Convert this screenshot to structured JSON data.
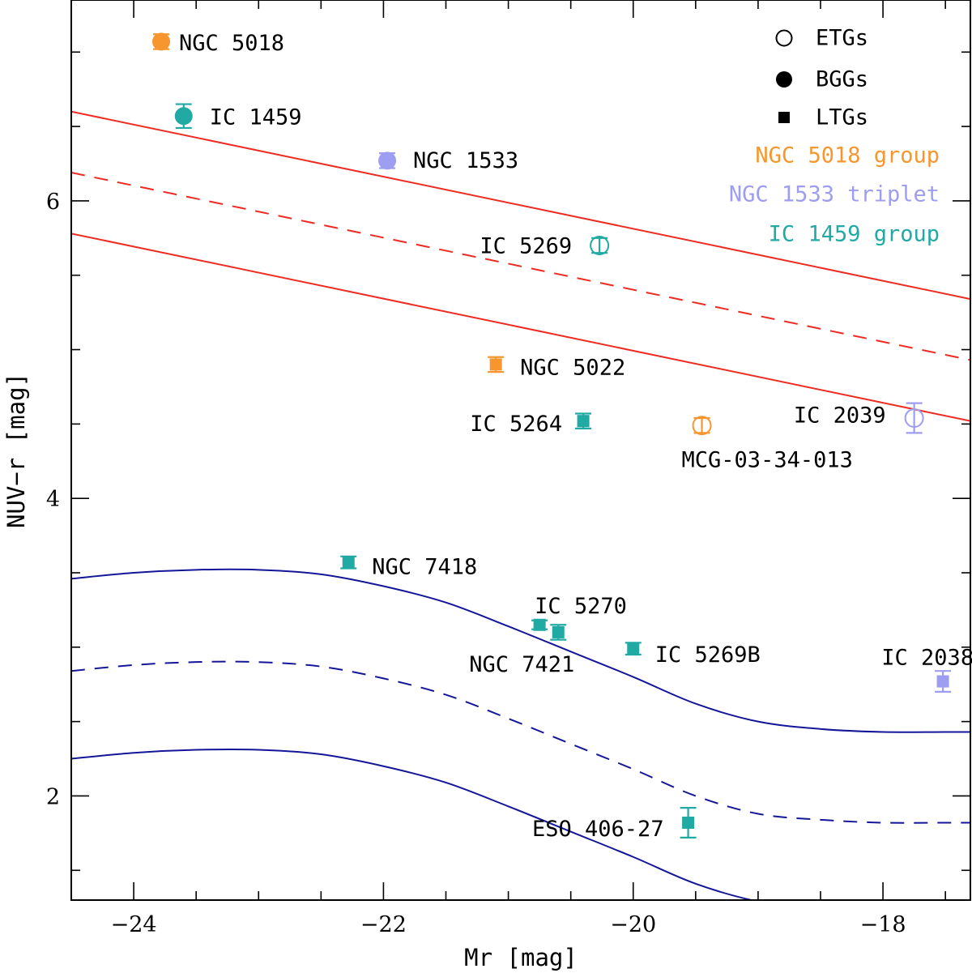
{
  "chart_data": {
    "type": "scatter",
    "xlabel": "Mr [mag]",
    "ylabel": "NUV−r [mag]",
    "xlim": [
      -24.5,
      -17.3
    ],
    "ylim": [
      1.3,
      7.35
    ],
    "x_ticks": [
      -24,
      -22,
      -20,
      -18
    ],
    "x_tick_labels": [
      "−24",
      "−22",
      "−20",
      "−18"
    ],
    "y_ticks": [
      2,
      4,
      6
    ],
    "y_tick_labels": [
      "2",
      "4",
      "6"
    ],
    "colors": {
      "ngc5018": "#f7962f",
      "ngc1533": "#9d9df2",
      "ic1459": "#21aaa4",
      "red_sequence": "#ee2b22",
      "blue_cloud": "#14169a"
    },
    "legend": {
      "position": "top-right",
      "symbols": [
        {
          "marker": "open-circle",
          "label": "ETGs"
        },
        {
          "marker": "filled-circle",
          "label": "BGGs"
        },
        {
          "marker": "filled-square",
          "label": "LTGs"
        }
      ],
      "groups": [
        {
          "label": "NGC 5018 group",
          "color": "ngc5018"
        },
        {
          "label": "NGC 1533 triplet",
          "color": "ngc1533"
        },
        {
          "label": "IC 1459 group",
          "color": "ic1459"
        }
      ]
    },
    "points": [
      {
        "name": "NGC 5018",
        "x": -23.78,
        "y": 7.07,
        "yerr": 0.05,
        "marker": "filled-circle",
        "group": "ngc5018"
      },
      {
        "name": "IC 1459",
        "x": -23.6,
        "y": 6.57,
        "yerr": 0.08,
        "marker": "filled-circle",
        "group": "ic1459"
      },
      {
        "name": "NGC 1533",
        "x": -21.97,
        "y": 6.27,
        "yerr": 0.05,
        "marker": "filled-circle",
        "group": "ngc1533"
      },
      {
        "name": "IC 5269",
        "x": -20.27,
        "y": 5.7,
        "yerr": 0.05,
        "marker": "open-circle",
        "group": "ic1459"
      },
      {
        "name": "NGC 5022",
        "x": -21.1,
        "y": 4.9,
        "yerr": 0.05,
        "marker": "filled-square",
        "group": "ngc5018"
      },
      {
        "name": "IC 5264",
        "x": -20.4,
        "y": 4.52,
        "yerr": 0.05,
        "marker": "filled-square",
        "group": "ic1459"
      },
      {
        "name": "MCG-03-34-013",
        "x": -19.45,
        "y": 4.49,
        "yerr": 0.05,
        "marker": "open-circle",
        "group": "ngc5018"
      },
      {
        "name": "IC 2039",
        "x": -17.75,
        "y": 4.54,
        "yerr": 0.1,
        "marker": "open-circle",
        "group": "ngc1533"
      },
      {
        "name": "NGC 7418",
        "x": -22.28,
        "y": 3.57,
        "yerr": 0.04,
        "marker": "filled-square",
        "group": "ic1459"
      },
      {
        "name": "IC 5270",
        "x": -20.75,
        "y": 3.15,
        "yerr": 0.03,
        "marker": "filled-square",
        "group": "ic1459"
      },
      {
        "name": "NGC 7421",
        "x": -20.6,
        "y": 3.1,
        "yerr": 0.05,
        "marker": "filled-square",
        "group": "ic1459"
      },
      {
        "name": "IC 5269B",
        "x": -20.0,
        "y": 2.99,
        "yerr": 0.04,
        "marker": "filled-square",
        "group": "ic1459"
      },
      {
        "name": "IC 2038",
        "x": -17.52,
        "y": 2.77,
        "yerr": 0.07,
        "marker": "filled-square",
        "group": "ngc1533"
      },
      {
        "name": "ESO 406-27",
        "x": -19.56,
        "y": 1.82,
        "yerr": 0.1,
        "marker": "filled-square",
        "group": "ic1459"
      }
    ],
    "lines": [
      {
        "name": "red-sequence-upper",
        "style": "solid",
        "color": "red_sequence",
        "x": [
          -24.5,
          -17.3
        ],
        "y": [
          6.6,
          5.34
        ]
      },
      {
        "name": "red-sequence-fit",
        "style": "dashed",
        "color": "red_sequence",
        "x": [
          -24.5,
          -17.3
        ],
        "y": [
          6.19,
          4.93
        ]
      },
      {
        "name": "red-sequence-lower",
        "style": "solid",
        "color": "red_sequence",
        "x": [
          -24.5,
          -17.3
        ],
        "y": [
          5.78,
          4.52
        ]
      },
      {
        "name": "blue-cloud-upper",
        "style": "solid",
        "color": "blue_cloud",
        "x": [
          -24.5,
          -24.0,
          -23.5,
          -23.0,
          -22.5,
          -22.0,
          -21.5,
          -21.0,
          -20.5,
          -20.0,
          -19.5,
          -19.0,
          -18.5,
          -18.0,
          -17.5,
          -17.3
        ],
        "y": [
          3.46,
          3.5,
          3.52,
          3.52,
          3.49,
          3.41,
          3.3,
          3.14,
          2.97,
          2.8,
          2.62,
          2.5,
          2.45,
          2.43,
          2.43,
          2.43
        ]
      },
      {
        "name": "blue-cloud-fit",
        "style": "dashed",
        "color": "blue_cloud",
        "x": [
          -24.5,
          -24.0,
          -23.5,
          -23.0,
          -22.5,
          -22.0,
          -21.5,
          -21.0,
          -20.5,
          -20.0,
          -19.5,
          -19.0,
          -18.5,
          -18.0,
          -17.5,
          -17.3
        ],
        "y": [
          2.84,
          2.88,
          2.9,
          2.9,
          2.87,
          2.79,
          2.68,
          2.52,
          2.35,
          2.18,
          2.0,
          1.88,
          1.84,
          1.82,
          1.82,
          1.82
        ]
      },
      {
        "name": "blue-cloud-lower",
        "style": "solid",
        "color": "blue_cloud",
        "x": [
          -24.5,
          -24.0,
          -23.5,
          -23.0,
          -22.5,
          -22.0,
          -21.5,
          -21.0,
          -20.5,
          -20.0,
          -19.5,
          -19.0,
          -18.6
        ],
        "y": [
          2.25,
          2.29,
          2.31,
          2.31,
          2.28,
          2.2,
          2.09,
          1.93,
          1.76,
          1.59,
          1.41,
          1.29,
          1.25
        ]
      }
    ]
  }
}
